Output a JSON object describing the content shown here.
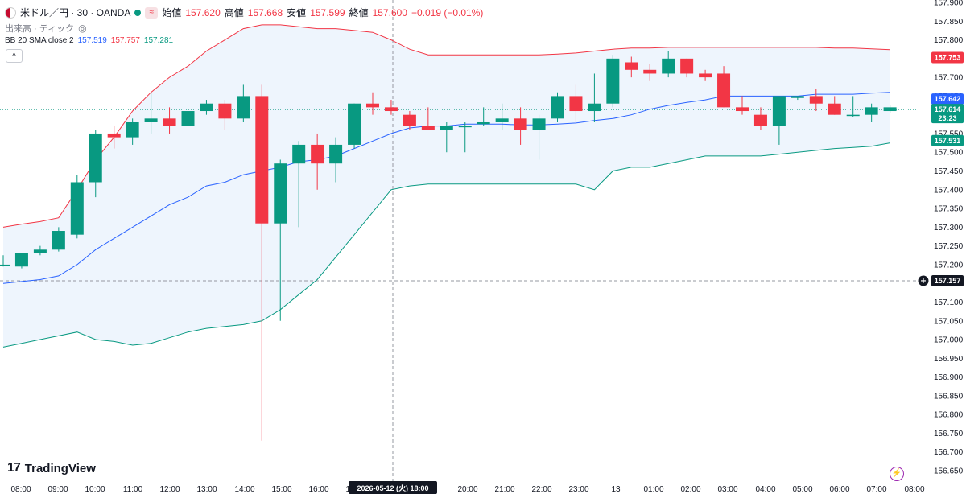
{
  "legend": {
    "symbol": "米ドル／円 · 30 · OANDA",
    "wave_icon": "≈",
    "open_label": "始値",
    "open": "157.620",
    "high_label": "高値",
    "high": "157.668",
    "low_label": "安値",
    "low": "157.599",
    "close_label": "終値",
    "close": "157.600",
    "change": "−0.019 (−0.01%)",
    "volume_label": "出来高 · ティック",
    "bb_label": "BB 20 SMA close 2",
    "bb_basis": "157.519",
    "bb_upper": "157.757",
    "bb_lower": "157.281",
    "collapse_icon": "^"
  },
  "brand": {
    "mark": "17",
    "name": "TradingView"
  },
  "colors": {
    "up": "#089981",
    "down": "#f23645",
    "basis": "#2962ff",
    "upper": "#f23645",
    "lower": "#089981",
    "band_fill": "#eef5fd"
  },
  "chart_data": {
    "type": "candlestick",
    "title": "米ドル／円 · 30 · OANDA",
    "ylim": [
      156.65,
      157.9
    ],
    "y_ticks": [
      "157.900",
      "157.850",
      "157.800",
      "157.750",
      "157.700",
      "157.650",
      "157.600",
      "157.550",
      "157.500",
      "157.450",
      "157.400",
      "157.350",
      "157.300",
      "157.250",
      "157.200",
      "157.150",
      "157.100",
      "157.050",
      "157.000",
      "156.950",
      "156.900",
      "156.850",
      "156.800",
      "156.750",
      "156.700",
      "156.650"
    ],
    "x_ticks": [
      "08:00",
      "09:00",
      "10:00",
      "11:00",
      "12:00",
      "13:00",
      "14:00",
      "15:00",
      "16:00",
      "17:00",
      "18:00",
      "20:00",
      "21:00",
      "22:00",
      "23:00",
      "13",
      "01:00",
      "02:00",
      "03:00",
      "04:00",
      "05:00",
      "06:00",
      "07:00",
      "08:00"
    ],
    "crosshair_time": "2026-05-12 (火)",
    "crosshair_price": "157.157",
    "last_price": "157.614",
    "countdown": "23:23",
    "upper_badge": "157.753",
    "basis_badge": "157.642",
    "lower_badge": "157.531",
    "candles": [
      {
        "o": 157.2,
        "h": 157.225,
        "l": 157.195,
        "c": 157.2
      },
      {
        "o": 157.195,
        "h": 157.23,
        "l": 157.19,
        "c": 157.23
      },
      {
        "o": 157.23,
        "h": 157.25,
        "l": 157.225,
        "c": 157.24
      },
      {
        "o": 157.24,
        "h": 157.3,
        "l": 157.235,
        "c": 157.29
      },
      {
        "o": 157.28,
        "h": 157.44,
        "l": 157.27,
        "c": 157.42
      },
      {
        "o": 157.42,
        "h": 157.56,
        "l": 157.38,
        "c": 157.55
      },
      {
        "o": 157.55,
        "h": 157.57,
        "l": 157.51,
        "c": 157.54
      },
      {
        "o": 157.54,
        "h": 157.59,
        "l": 157.52,
        "c": 157.58
      },
      {
        "o": 157.58,
        "h": 157.66,
        "l": 157.55,
        "c": 157.59
      },
      {
        "o": 157.59,
        "h": 157.62,
        "l": 157.55,
        "c": 157.57
      },
      {
        "o": 157.57,
        "h": 157.62,
        "l": 157.56,
        "c": 157.61
      },
      {
        "o": 157.61,
        "h": 157.64,
        "l": 157.6,
        "c": 157.63
      },
      {
        "o": 157.63,
        "h": 157.64,
        "l": 157.56,
        "c": 157.59
      },
      {
        "o": 157.59,
        "h": 157.68,
        "l": 157.58,
        "c": 157.65
      },
      {
        "o": 157.65,
        "h": 157.68,
        "l": 156.73,
        "c": 157.31
      },
      {
        "o": 157.31,
        "h": 157.48,
        "l": 157.05,
        "c": 157.47
      },
      {
        "o": 157.47,
        "h": 157.53,
        "l": 157.3,
        "c": 157.52
      },
      {
        "o": 157.52,
        "h": 157.55,
        "l": 157.4,
        "c": 157.47
      },
      {
        "o": 157.47,
        "h": 157.54,
        "l": 157.42,
        "c": 157.52
      },
      {
        "o": 157.52,
        "h": 157.63,
        "l": 157.51,
        "c": 157.63
      },
      {
        "o": 157.63,
        "h": 157.66,
        "l": 157.6,
        "c": 157.62
      },
      {
        "o": 157.62,
        "h": 157.64,
        "l": 157.6,
        "c": 157.61
      },
      {
        "o": 157.6,
        "h": 157.61,
        "l": 157.56,
        "c": 157.57
      },
      {
        "o": 157.57,
        "h": 157.62,
        "l": 157.56,
        "c": 157.56
      },
      {
        "o": 157.56,
        "h": 157.58,
        "l": 157.5,
        "c": 157.57
      },
      {
        "o": 157.57,
        "h": 157.58,
        "l": 157.5,
        "c": 157.57
      },
      {
        "o": 157.575,
        "h": 157.62,
        "l": 157.57,
        "c": 157.58
      },
      {
        "o": 157.58,
        "h": 157.63,
        "l": 157.56,
        "c": 157.59
      },
      {
        "o": 157.59,
        "h": 157.62,
        "l": 157.52,
        "c": 157.56
      },
      {
        "o": 157.56,
        "h": 157.6,
        "l": 157.48,
        "c": 157.59
      },
      {
        "o": 157.59,
        "h": 157.66,
        "l": 157.58,
        "c": 157.65
      },
      {
        "o": 157.65,
        "h": 157.68,
        "l": 157.58,
        "c": 157.61
      },
      {
        "o": 157.61,
        "h": 157.71,
        "l": 157.58,
        "c": 157.63
      },
      {
        "o": 157.63,
        "h": 157.76,
        "l": 157.62,
        "c": 157.75
      },
      {
        "o": 157.74,
        "h": 157.755,
        "l": 157.7,
        "c": 157.72
      },
      {
        "o": 157.72,
        "h": 157.735,
        "l": 157.69,
        "c": 157.71
      },
      {
        "o": 157.71,
        "h": 157.77,
        "l": 157.7,
        "c": 157.75
      },
      {
        "o": 157.75,
        "h": 157.75,
        "l": 157.7,
        "c": 157.71
      },
      {
        "o": 157.71,
        "h": 157.72,
        "l": 157.69,
        "c": 157.7
      },
      {
        "o": 157.71,
        "h": 157.73,
        "l": 157.62,
        "c": 157.62
      },
      {
        "o": 157.62,
        "h": 157.65,
        "l": 157.6,
        "c": 157.61
      },
      {
        "o": 157.6,
        "h": 157.62,
        "l": 157.56,
        "c": 157.57
      },
      {
        "o": 157.57,
        "h": 157.65,
        "l": 157.52,
        "c": 157.65
      },
      {
        "o": 157.645,
        "h": 157.65,
        "l": 157.64,
        "c": 157.65
      },
      {
        "o": 157.65,
        "h": 157.67,
        "l": 157.61,
        "c": 157.63
      },
      {
        "o": 157.63,
        "h": 157.65,
        "l": 157.6,
        "c": 157.6
      },
      {
        "o": 157.6,
        "h": 157.65,
        "l": 157.595,
        "c": 157.6
      },
      {
        "o": 157.6,
        "h": 157.63,
        "l": 157.58,
        "c": 157.62
      },
      {
        "o": 157.61,
        "h": 157.625,
        "l": 157.605,
        "c": 157.62
      }
    ],
    "bb_upper_series": [
      157.3,
      157.308,
      157.315,
      157.325,
      157.4,
      157.48,
      157.54,
      157.61,
      157.66,
      157.7,
      157.73,
      157.77,
      157.8,
      157.83,
      157.84,
      157.84,
      157.835,
      157.83,
      157.83,
      157.825,
      157.82,
      157.8,
      157.775,
      157.76,
      157.76,
      157.76,
      157.76,
      157.76,
      157.76,
      157.76,
      157.762,
      157.765,
      157.77,
      157.775,
      157.778,
      157.778,
      157.78,
      157.78,
      157.78,
      157.78,
      157.78,
      157.78,
      157.78,
      157.78,
      157.78,
      157.778,
      157.778,
      157.776,
      157.774
    ],
    "bb_basis_series": [
      157.15,
      157.155,
      157.16,
      157.17,
      157.2,
      157.24,
      157.27,
      157.3,
      157.33,
      157.36,
      157.38,
      157.41,
      157.42,
      157.44,
      157.45,
      157.46,
      157.475,
      157.48,
      157.49,
      157.51,
      157.53,
      157.55,
      157.565,
      157.57,
      157.57,
      157.575,
      157.575,
      157.575,
      157.573,
      157.573,
      157.575,
      157.578,
      157.585,
      157.59,
      157.6,
      157.615,
      157.625,
      157.633,
      157.64,
      157.65,
      157.65,
      157.65,
      157.65,
      157.65,
      157.655,
      157.655,
      157.655,
      157.658,
      157.66
    ],
    "bb_lower_series": [
      156.98,
      156.99,
      157.0,
      157.01,
      157.02,
      157.0,
      156.995,
      156.985,
      156.99,
      157.005,
      157.02,
      157.03,
      157.035,
      157.04,
      157.05,
      157.08,
      157.12,
      157.16,
      157.22,
      157.28,
      157.34,
      157.4,
      157.41,
      157.415,
      157.415,
      157.415,
      157.415,
      157.415,
      157.415,
      157.415,
      157.415,
      157.415,
      157.4,
      157.45,
      157.46,
      157.46,
      157.47,
      157.48,
      157.49,
      157.49,
      157.49,
      157.49,
      157.495,
      157.5,
      157.505,
      157.51,
      157.513,
      157.516,
      157.525
    ]
  }
}
